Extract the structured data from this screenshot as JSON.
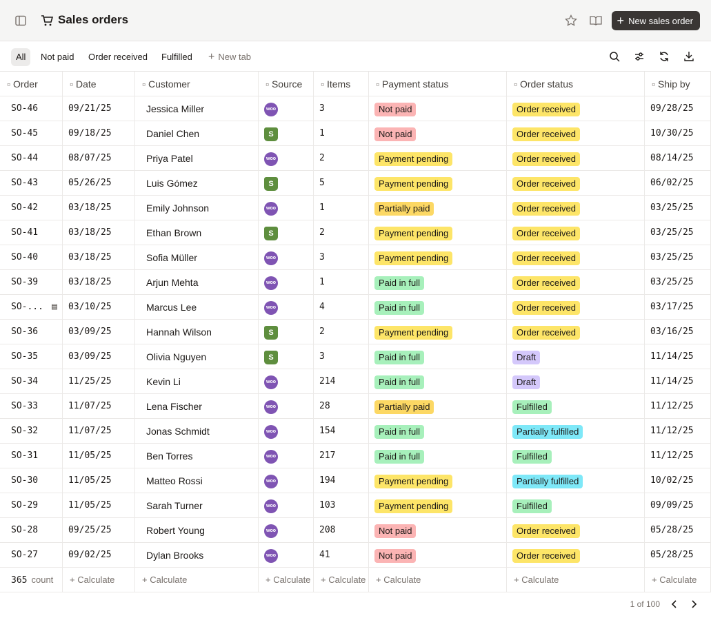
{
  "header": {
    "title": "Sales orders",
    "button": "New sales order"
  },
  "tabs": [
    "All",
    "Not paid",
    "Order received",
    "Fulfilled",
    "New tab"
  ],
  "table": {
    "columns": [
      "Order",
      "Date",
      "Customer",
      "Source",
      "Items",
      "Payment status",
      "Order status",
      "Ship by"
    ],
    "rows": [
      [
        "SO-46",
        "09/21/25",
        "Jessica Miller",
        "woo",
        3,
        {
          "text": "Not paid",
          "color": "#fbb4b4"
        },
        {
          "text": "Order received",
          "color": "#fde568"
        },
        "09/28/25"
      ],
      [
        "SO-45",
        "09/18/25",
        "Daniel Chen",
        "S",
        1,
        {
          "text": "Not paid",
          "color": "#fbb4b4"
        },
        {
          "text": "Order received",
          "color": "#fde568"
        },
        "10/30/25"
      ],
      [
        "SO-44",
        "08/07/25",
        "Priya Patel",
        "woo",
        2,
        {
          "text": "Payment pending",
          "color": "#fde568"
        },
        {
          "text": "Order received",
          "color": "#fde568"
        },
        "08/14/25"
      ],
      [
        "SO-43",
        "05/26/25",
        "Luis Gómez",
        "S",
        5,
        {
          "text": "Payment pending",
          "color": "#fde568"
        },
        {
          "text": "Order received",
          "color": "#fde568"
        },
        "06/02/25"
      ],
      [
        "SO-42",
        "03/18/25",
        "Emily Johnson",
        "woo",
        1,
        {
          "text": "Partially paid",
          "color": "#fcd864"
        },
        {
          "text": "Order received",
          "color": "#fde568"
        },
        "03/25/25"
      ],
      [
        "SO-41",
        "03/18/25",
        "Ethan Brown",
        "S",
        2,
        {
          "text": "Payment pending",
          "color": "#fde568"
        },
        {
          "text": "Order received",
          "color": "#fde568"
        },
        "03/25/25"
      ],
      [
        "SO-40",
        "03/18/25",
        "Sofia Müller",
        "woo",
        3,
        {
          "text": "Payment pending",
          "color": "#fde568"
        },
        {
          "text": "Order received",
          "color": "#fde568"
        },
        "03/25/25"
      ],
      [
        "SO-39",
        "03/18/25",
        "Arjun Mehta",
        "woo",
        1,
        {
          "text": "Paid in full",
          "color": "#a7f0bb"
        },
        {
          "text": "Order received",
          "color": "#fde568"
        },
        "03/25/25"
      ],
      [
        "SO-...",
        "03/10/25",
        "Marcus Lee",
        "woo",
        4,
        {
          "text": "Paid in full",
          "color": "#a7f0bb"
        },
        {
          "text": "Order received",
          "color": "#fde568"
        },
        "03/17/25"
      ],
      [
        "SO-36",
        "03/09/25",
        "Hannah Wilson",
        "S",
        2,
        {
          "text": "Payment pending",
          "color": "#fde568"
        },
        {
          "text": "Order received",
          "color": "#fde568"
        },
        "03/16/25"
      ],
      [
        "SO-35",
        "03/09/25",
        "Olivia Nguyen",
        "S",
        3,
        {
          "text": "Paid in full",
          "color": "#a7f0bb"
        },
        {
          "text": "Draft",
          "color": "#d4c8fb"
        },
        "11/14/25"
      ],
      [
        "SO-34",
        "11/25/25",
        "Kevin Li",
        "woo",
        214,
        {
          "text": "Paid in full",
          "color": "#a7f0bb"
        },
        {
          "text": "Draft",
          "color": "#d4c8fb"
        },
        "11/14/25"
      ],
      [
        "SO-33",
        "11/07/25",
        "Lena Fischer",
        "woo",
        28,
        {
          "text": "Partially paid",
          "color": "#fcd864"
        },
        {
          "text": "Fulfilled",
          "color": "#a7f0bb"
        },
        "11/12/25"
      ],
      [
        "SO-32",
        "11/07/25",
        "Jonas Schmidt",
        "woo",
        154,
        {
          "text": "Paid in full",
          "color": "#a7f0bb"
        },
        {
          "text": "Partially fulfilled",
          "color": "#7ee8f8"
        },
        "11/12/25"
      ],
      [
        "SO-31",
        "11/05/25",
        "Ben Torres",
        "woo",
        217,
        {
          "text": "Paid in full",
          "color": "#a7f0bb"
        },
        {
          "text": "Fulfilled",
          "color": "#a7f0bb"
        },
        "11/12/25"
      ],
      [
        "SO-30",
        "11/05/25",
        "Matteo Rossi",
        "woo",
        194,
        {
          "text": "Payment pending",
          "color": "#fde568"
        },
        {
          "text": "Partially fulfilled",
          "color": "#7ee8f8"
        },
        "10/02/25"
      ],
      [
        "SO-29",
        "11/05/25",
        "Sarah Turner",
        "woo",
        103,
        {
          "text": "Payment pending",
          "color": "#fde568"
        },
        {
          "text": "Fulfilled",
          "color": "#a7f0bb"
        },
        "09/09/25"
      ],
      [
        "SO-28",
        "09/25/25",
        "Robert Young",
        "woo",
        208,
        {
          "text": "Not paid",
          "color": "#fbb4b4"
        },
        {
          "text": "Order received",
          "color": "#fde568"
        },
        "05/28/25"
      ],
      [
        "SO-27",
        "09/02/25",
        "Dylan Brooks",
        "woo",
        41,
        {
          "text": "Not paid",
          "color": "#fbb4b4"
        },
        {
          "text": "Order received",
          "color": "#fde568"
        },
        "05/28/25"
      ]
    ],
    "footer": {
      "count": 365,
      "count_label": "count",
      "calculate": "Calculate"
    }
  },
  "pagination": "1 of 100"
}
